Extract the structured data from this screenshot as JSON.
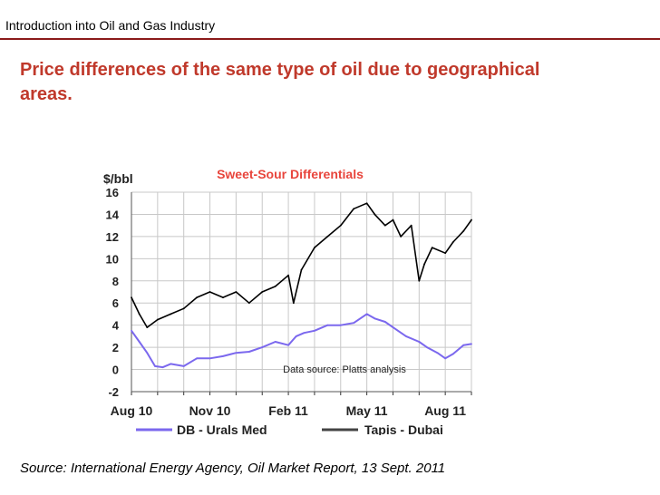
{
  "header": {
    "title": "Introduction into Oil and Gas Industry"
  },
  "slide": {
    "title": "Price differences of the same type of oil due to geographical areas.",
    "source": "Source: International Energy Agency, Oil Market Report, 13 Sept. 2011"
  },
  "colors": {
    "accent": "#c0392b",
    "rule": "#8b1a1a",
    "chart_title": "#e8453c",
    "urals": "#7b68ee",
    "tapis": "#000000"
  },
  "chart_data": {
    "type": "line",
    "title": "Sweet-Sour Differentials",
    "ylabel": "$/bbl",
    "xlabel": "",
    "ylim": [
      -2,
      16
    ],
    "yticks": [
      "16",
      "14",
      "12",
      "10",
      "8",
      "6",
      "4",
      "2",
      "0",
      "-2"
    ],
    "xlim": [
      0,
      13
    ],
    "xtick_positions": [
      0,
      3,
      6,
      9,
      12
    ],
    "xticks": [
      "Aug 10",
      "Nov 10",
      "Feb 11",
      "May 11",
      "Aug 11"
    ],
    "grid": true,
    "legend_position": "bottom",
    "annotation": "Data source:  Platts analysis",
    "series": [
      {
        "name": "DB - Urals Med",
        "color": "#7b68ee",
        "x": [
          0,
          0.3,
          0.6,
          0.9,
          1.2,
          1.5,
          2,
          2.5,
          3,
          3.5,
          4,
          4.5,
          5,
          5.5,
          6,
          6.3,
          6.6,
          7,
          7.5,
          8,
          8.5,
          9,
          9.3,
          9.7,
          10,
          10.5,
          11,
          11.3,
          11.7,
          12,
          12.3,
          12.7,
          13
        ],
        "values": [
          3.5,
          2.5,
          1.5,
          0.3,
          0.2,
          0.5,
          0.3,
          1,
          1,
          1.2,
          1.5,
          1.6,
          2,
          2.5,
          2.2,
          3,
          3.3,
          3.5,
          4,
          4,
          4.2,
          5,
          4.6,
          4.3,
          3.8,
          3,
          2.5,
          2,
          1.5,
          1,
          1.4,
          2.2,
          2.3
        ]
      },
      {
        "name": "Tapis - Dubai",
        "color": "#000000",
        "x": [
          0,
          0.3,
          0.6,
          1,
          1.5,
          2,
          2.5,
          3,
          3.5,
          4,
          4.5,
          5,
          5.5,
          6,
          6.2,
          6.5,
          7,
          7.5,
          8,
          8.5,
          9,
          9.3,
          9.7,
          10,
          10.3,
          10.7,
          11,
          11.2,
          11.5,
          12,
          12.3,
          12.7,
          13
        ],
        "values": [
          6.5,
          5,
          3.8,
          4.5,
          5,
          5.5,
          6.5,
          7,
          6.5,
          7,
          6,
          7,
          7.5,
          8.5,
          6,
          9,
          11,
          12,
          13,
          14.5,
          15,
          14,
          13,
          13.5,
          12,
          13,
          8,
          9.5,
          11,
          10.5,
          11.5,
          12.5,
          13.5
        ]
      }
    ]
  }
}
